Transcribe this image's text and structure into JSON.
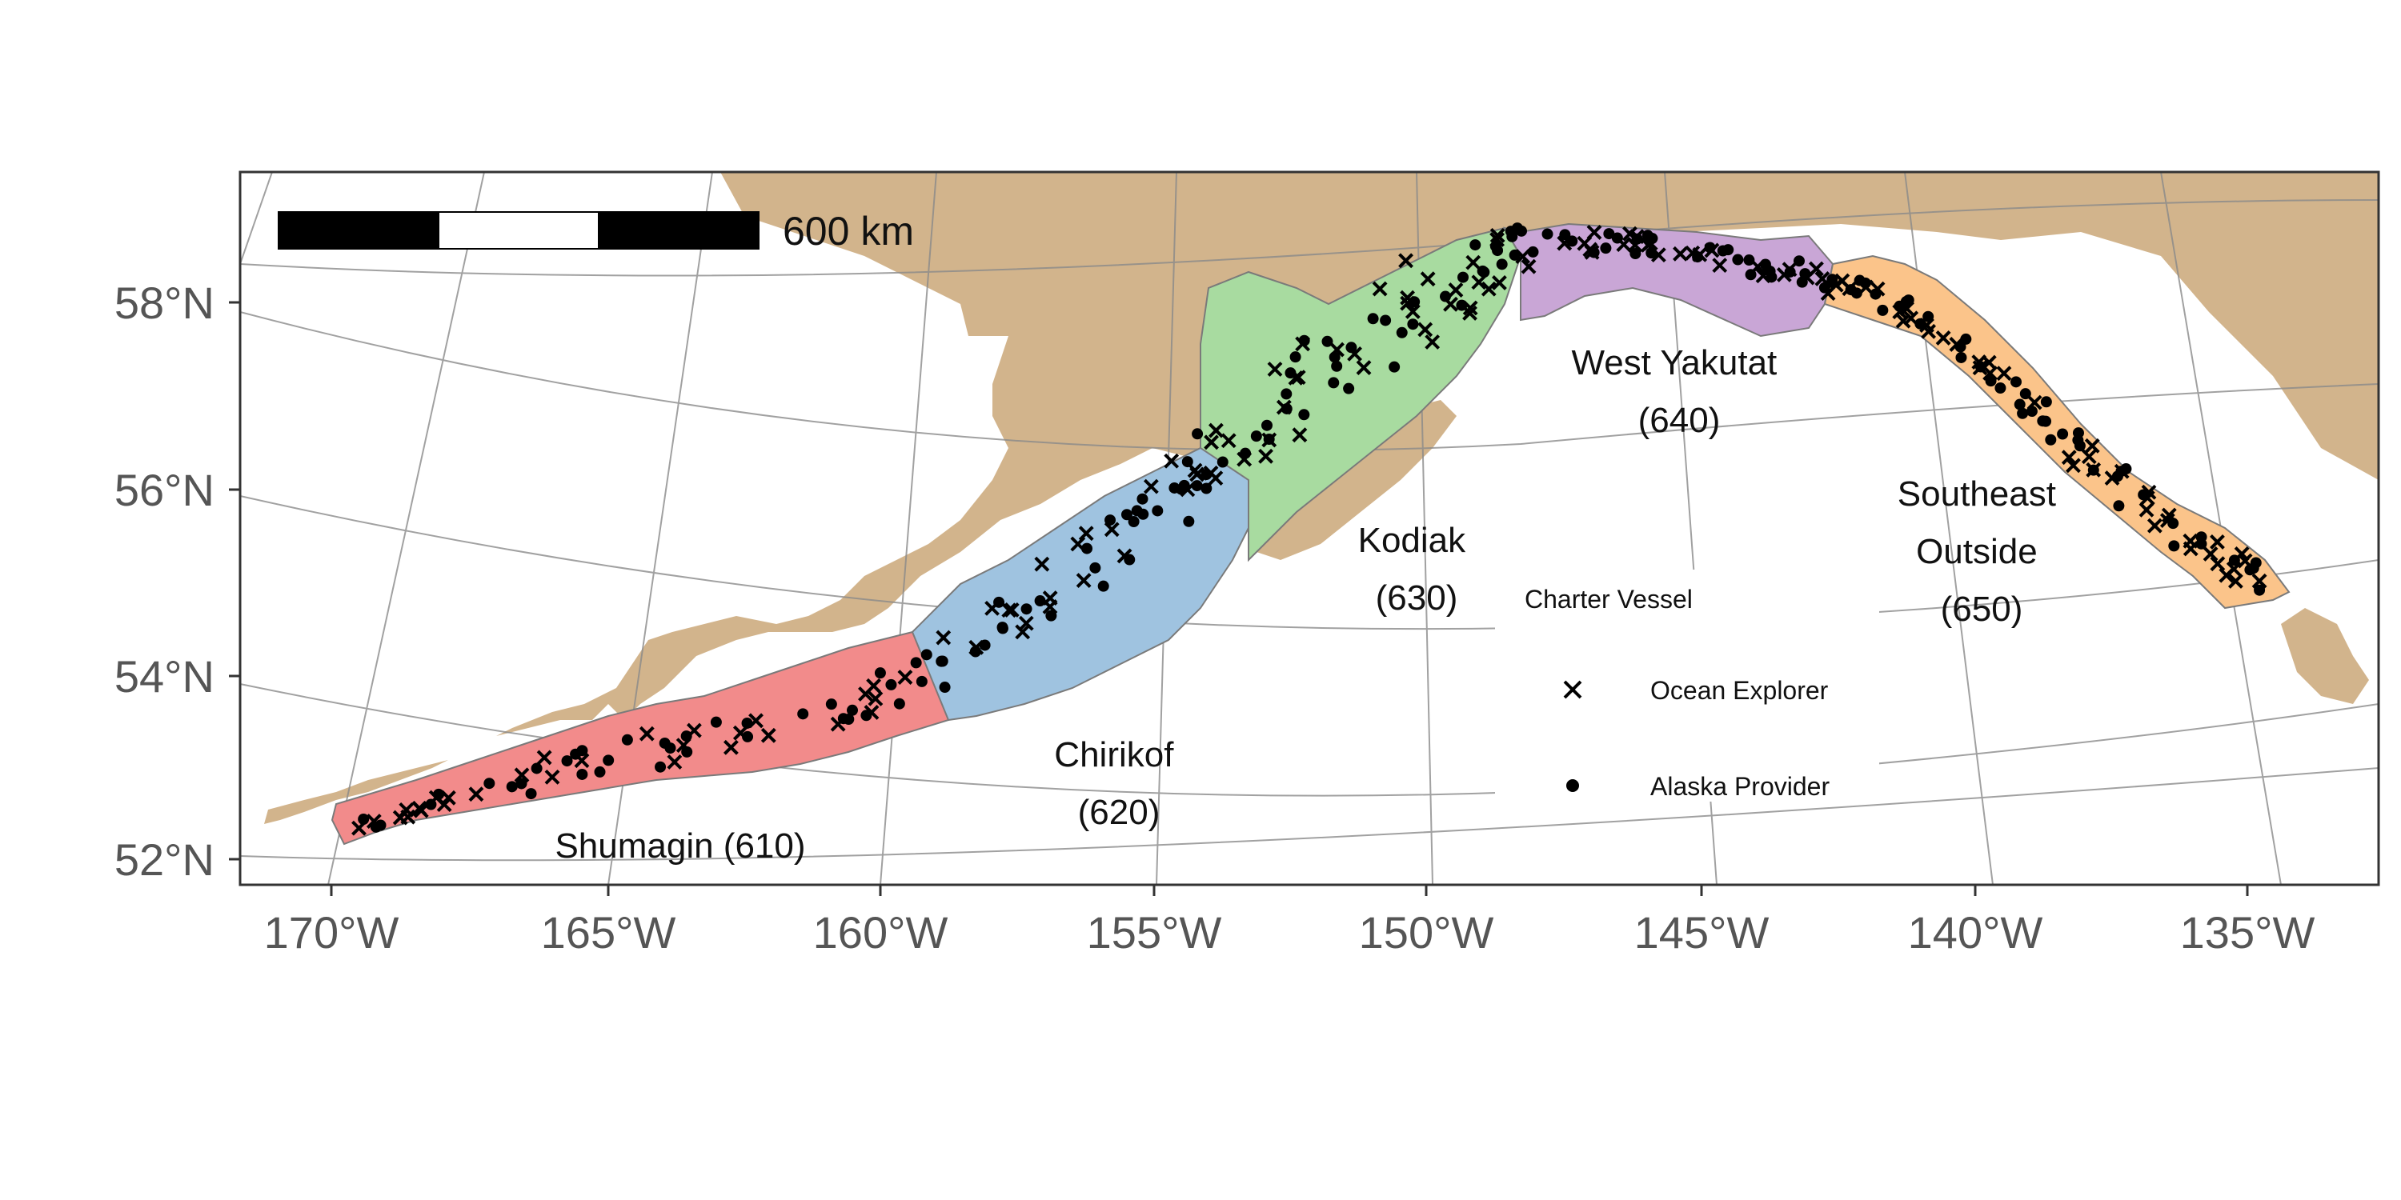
{
  "map": {
    "scale_bar": {
      "label": "600 km"
    },
    "lat_labels": [
      "58°N",
      "56°N",
      "54°N",
      "52°N"
    ],
    "lon_labels": [
      "170°W",
      "165°W",
      "160°W",
      "155°W",
      "150°W",
      "145°W",
      "140°W",
      "135°W"
    ],
    "regions": [
      {
        "name": "Shumagin (610)",
        "lines": [
          "Shumagin (610)"
        ],
        "color": "#f28b8b"
      },
      {
        "name": "Chirikof (620)",
        "lines": [
          "Chirikof",
          "(620)"
        ],
        "color": "#9fc3e0"
      },
      {
        "name": "Kodiak (630)",
        "lines": [
          "Kodiak",
          "(630)"
        ],
        "color": "#a8dba0"
      },
      {
        "name": "West Yakutat (640)",
        "lines": [
          "West Yakutat",
          "(640)"
        ],
        "color": "#c9a6d6"
      },
      {
        "name": "Southeast Outside (650)",
        "lines": [
          "Southeast",
          "Outside",
          "(650)"
        ],
        "color": "#fbc48a"
      }
    ],
    "land_color": "#d2b48c",
    "legend": {
      "title": "Charter Vessel",
      "items": [
        {
          "label": "Ocean Explorer",
          "symbol": "x-mark"
        },
        {
          "label": "Alaska Provider",
          "symbol": "dot"
        }
      ]
    }
  }
}
